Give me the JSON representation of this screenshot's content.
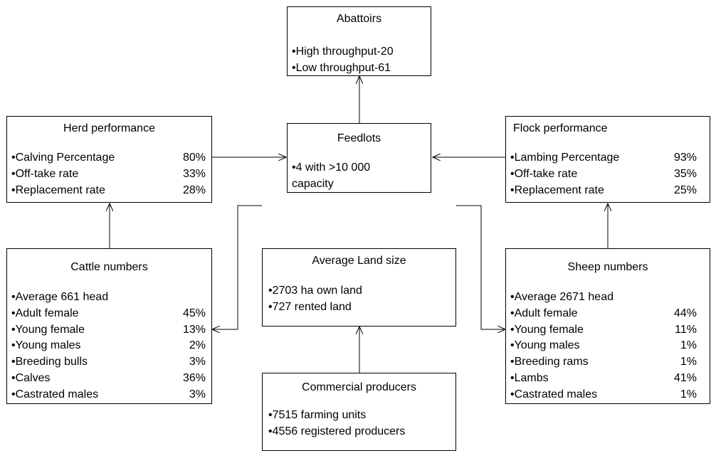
{
  "abattoirs": {
    "title": "Abattoirs",
    "items": [
      "•High throughput-20",
      "•Low throughput-61"
    ]
  },
  "herd_performance": {
    "title": "Herd performance",
    "items": [
      {
        "label": "•Calving Percentage",
        "value": "80%"
      },
      {
        "label": "•Off-take rate",
        "value": "33%"
      },
      {
        "label": "•Replacement rate",
        "value": "28%"
      }
    ]
  },
  "feedlots": {
    "title": "Feedlots",
    "items": [
      "•4 with >10 000",
      "capacity"
    ]
  },
  "flock_performance": {
    "title": "Flock performance",
    "items": [
      {
        "label": "•Lambing Percentage",
        "value": "93%"
      },
      {
        "label": "•Off-take rate",
        "value": "35%"
      },
      {
        "label": "•Replacement rate",
        "value": "25%"
      }
    ]
  },
  "cattle_numbers": {
    "title": "Cattle numbers",
    "average": "•Average 661 head",
    "items": [
      {
        "label": "•Adult female",
        "value": "45%"
      },
      {
        "label": "•Young female",
        "value": "13%"
      },
      {
        "label": "•Young males",
        "value": "2%"
      },
      {
        "label": "•Breeding bulls",
        "value": "3%"
      },
      {
        "label": "•Calves",
        "value": "36%"
      },
      {
        "label": "•Castrated males",
        "value": "3%"
      }
    ]
  },
  "average_land_size": {
    "title": "Average Land size",
    "items": [
      "•2703  ha own land",
      "•727 rented land"
    ]
  },
  "sheep_numbers": {
    "title": "Sheep numbers",
    "average": "•Average 2671 head",
    "items": [
      {
        "label": "•Adult female",
        "value": "44%"
      },
      {
        "label": "•Young female",
        "value": "11%"
      },
      {
        "label": "•Young males",
        "value": "1%"
      },
      {
        "label": "•Breeding rams",
        "value": "1%"
      },
      {
        "label": "•Lambs",
        "value": "41%"
      },
      {
        "label": "•Castrated males",
        "value": "1%"
      }
    ]
  },
  "commercial_producers": {
    "title": "Commercial producers",
    "items": [
      "•7515 farming units",
      "•4556 registered producers"
    ]
  }
}
